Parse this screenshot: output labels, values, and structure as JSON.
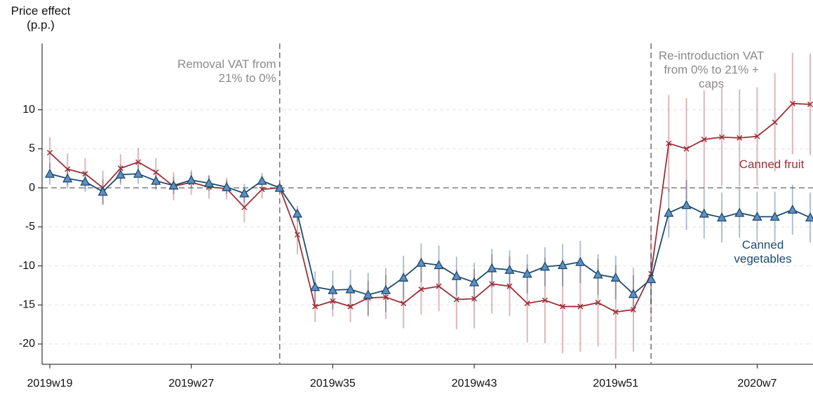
{
  "chart_data": {
    "type": "line",
    "y_label": "Price effect (p.p.)",
    "categories": [
      "2019w19",
      null,
      null,
      null,
      null,
      null,
      null,
      null,
      "2019w27",
      null,
      null,
      null,
      null,
      null,
      null,
      null,
      "2019w35",
      null,
      null,
      null,
      null,
      null,
      null,
      null,
      "2019w43",
      null,
      null,
      null,
      null,
      null,
      null,
      null,
      "2019w51",
      null,
      null,
      null,
      null,
      null,
      null,
      null,
      "2020w7",
      null,
      null,
      null
    ],
    "series": [
      {
        "name": "Canned fruit",
        "color": "#9e2f38",
        "marker": "x",
        "values": [
          4.5,
          2.4,
          1.8,
          0.0,
          2.5,
          3.3,
          2.0,
          0.2,
          0.7,
          0.1,
          -0.1,
          -2.5,
          -0.2,
          0.0,
          -6.0,
          -15.2,
          -14.5,
          -15.2,
          -14.1,
          -14.0,
          -14.8,
          -13.0,
          -12.6,
          -14.3,
          -14.2,
          -12.3,
          -12.6,
          -14.8,
          -14.4,
          -15.2,
          -15.2,
          -14.7,
          -15.9,
          -15.6,
          -11.0,
          5.7,
          5.0,
          6.2,
          6.5,
          6.4,
          6.6,
          8.4,
          10.8,
          10.7
        ],
        "errors": [
          2,
          2,
          2,
          2.2,
          1.8,
          1.8,
          1.8,
          1.8,
          1.6,
          1.5,
          1.4,
          1.9,
          1.2,
          0,
          2.5,
          2,
          2,
          2,
          2.2,
          2.8,
          3.2,
          3.2,
          3.2,
          3.8,
          3.8,
          3.8,
          3.8,
          5,
          5.5,
          6,
          5.8,
          5.6,
          6,
          5.4,
          5.5,
          6.2,
          6.5,
          6.3,
          6.3,
          6.2,
          6.3,
          6.3,
          6.5,
          6.5
        ]
      },
      {
        "name": "Canned vegetables",
        "color": "#1d4a6e",
        "marker": "triangle",
        "marker_fill": "#5e8fc2",
        "values": [
          1.8,
          1.2,
          0.8,
          -0.5,
          1.7,
          1.8,
          0.9,
          0.3,
          1.0,
          0.6,
          0.1,
          -0.7,
          0.9,
          0.0,
          -3.3,
          -12.7,
          -13.1,
          -13.0,
          -13.7,
          -13.1,
          -11.5,
          -9.6,
          -9.9,
          -11.3,
          -12.1,
          -10.3,
          -10.5,
          -11.0,
          -10.1,
          -9.9,
          -9.5,
          -11.1,
          -11.5,
          -13.6,
          -11.7,
          -3.2,
          -2.2,
          -3.3,
          -3.8,
          -3.2,
          -3.7,
          -3.7,
          -2.8,
          -3.8
        ],
        "errors": [
          1.4,
          1.3,
          1.3,
          1.6,
          1.3,
          1.3,
          1.2,
          1.1,
          1,
          1,
          0.9,
          1.2,
          1,
          0,
          1,
          2,
          2.5,
          2.5,
          2.8,
          2.8,
          2.8,
          2.5,
          2.5,
          2.5,
          2.5,
          2.5,
          2.5,
          2.5,
          2.5,
          2.7,
          2.7,
          2.6,
          2.8,
          2.4,
          3.2,
          3.2,
          3.2,
          3.2,
          3.2,
          3.2,
          3.2,
          3.2,
          3.2,
          3.2
        ]
      }
    ],
    "vlines": [
      {
        "at": 13,
        "label": "Removal VAT from 21% to 0%"
      },
      {
        "at": 34,
        "label": "Re-introduction VAT from 0% to 21% + caps"
      }
    ],
    "ylim": [
      -22.6,
      18.5
    ],
    "yticks": [
      -20,
      -15,
      -10,
      -5,
      0,
      5,
      10
    ],
    "grid": true
  }
}
